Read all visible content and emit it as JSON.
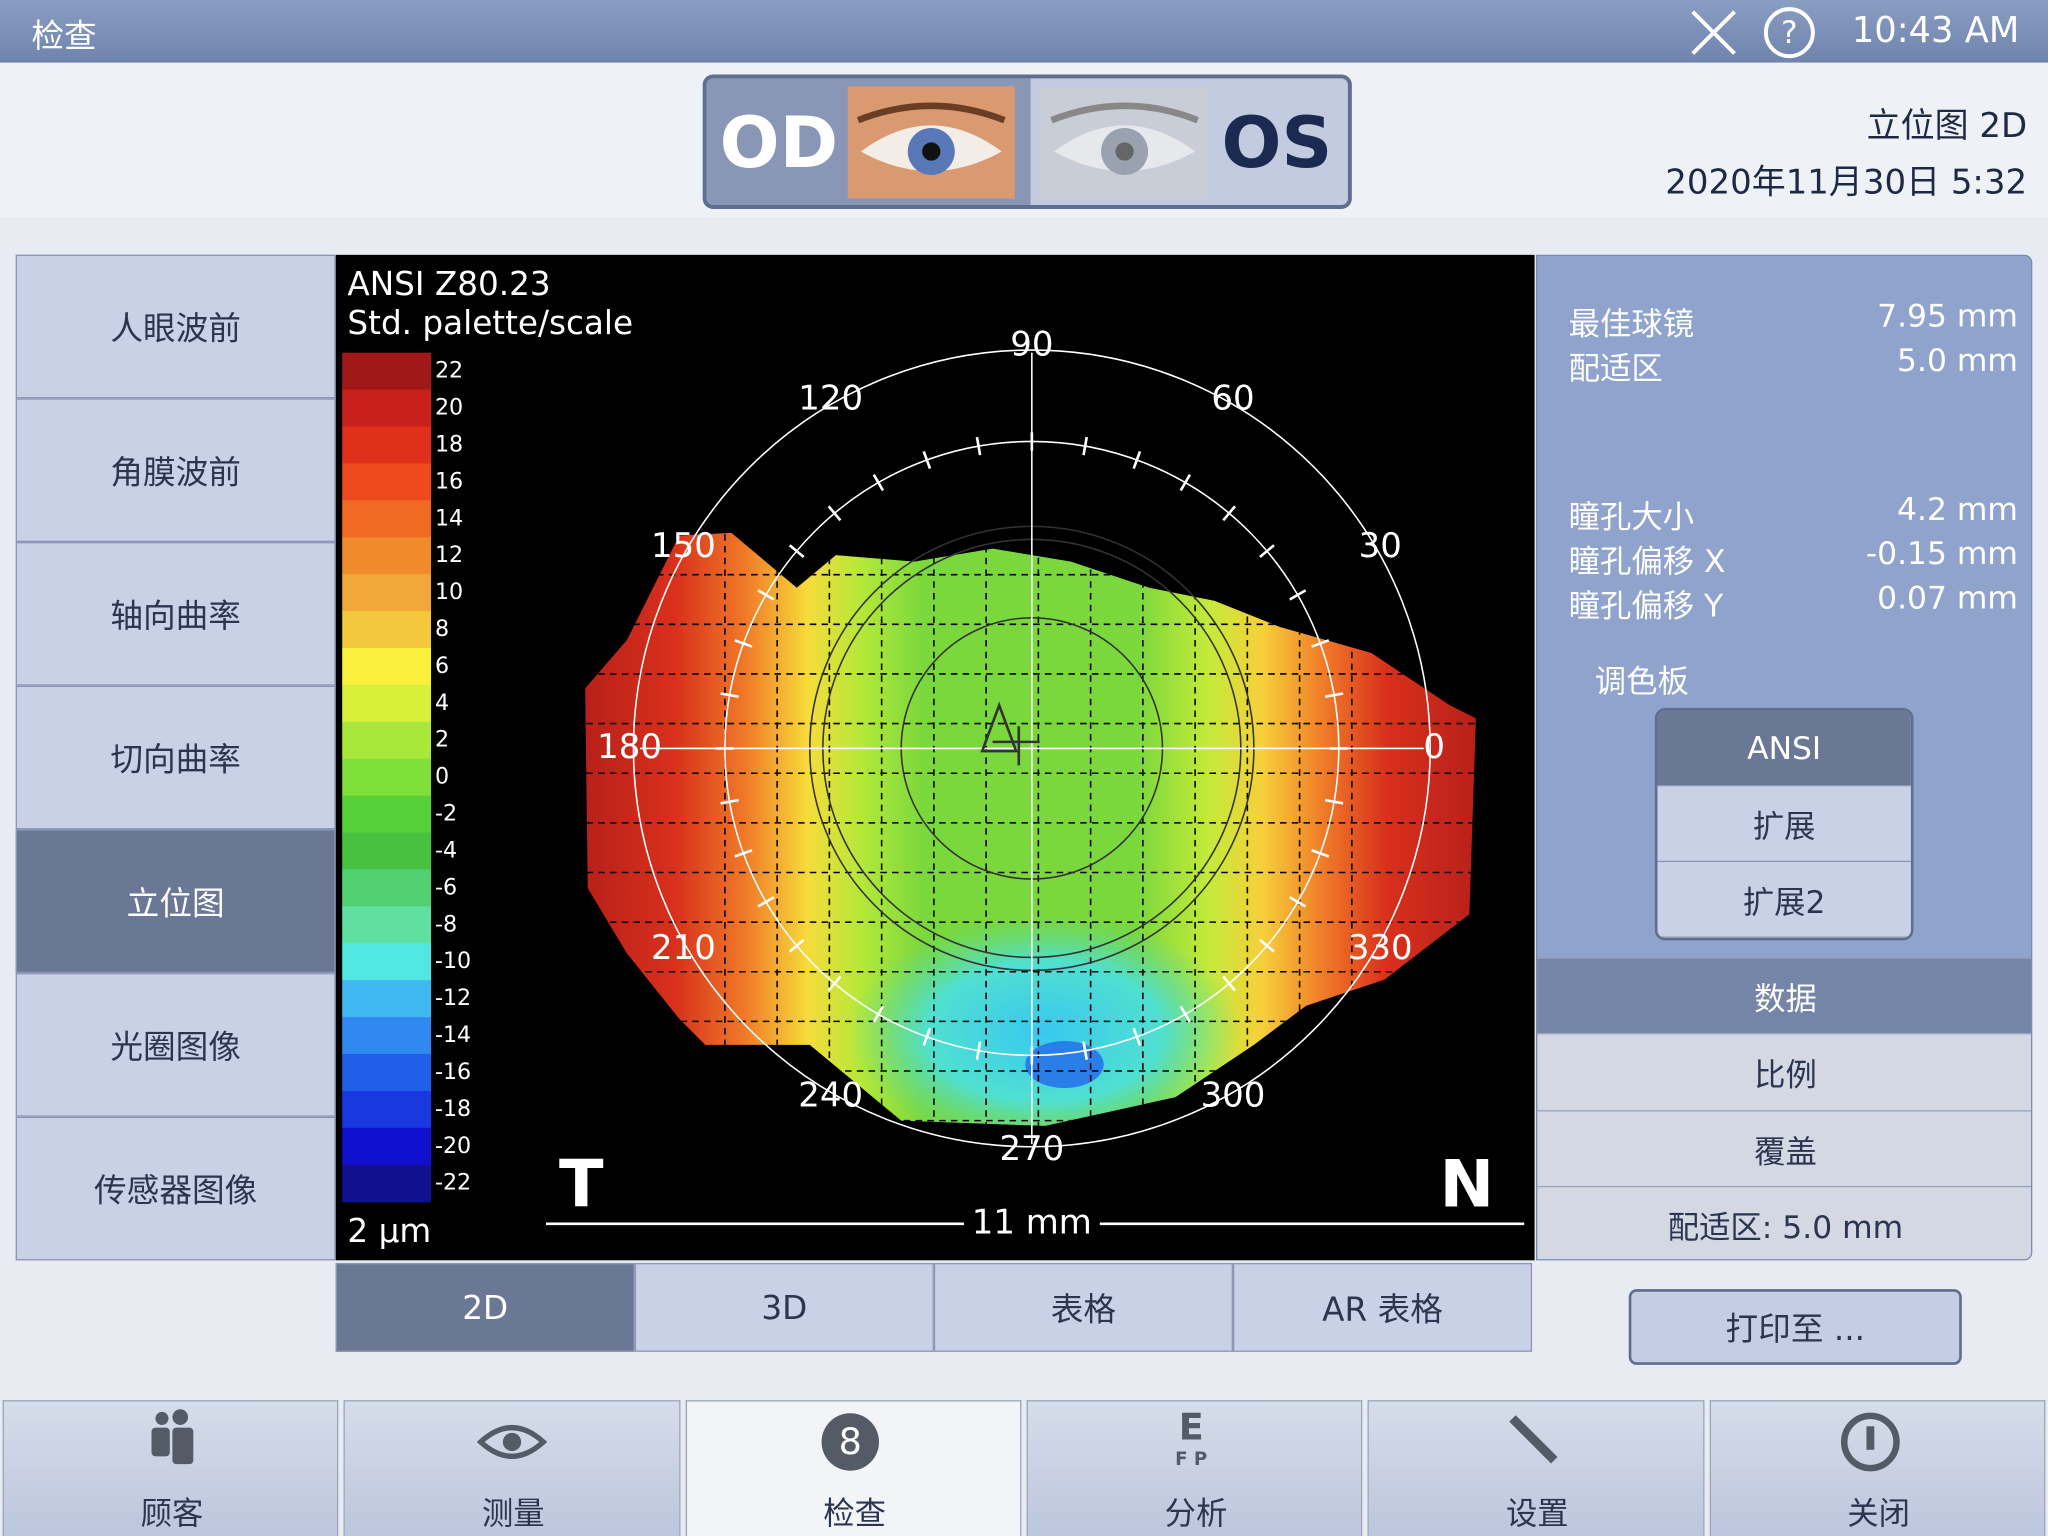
{
  "top_bar": {
    "title": "检查",
    "time": "10:43 AM"
  },
  "eye_selector": {
    "left": "OD",
    "right": "OS"
  },
  "header_info": {
    "view": "立位图 2D",
    "date": "2020年11月30日 5:32"
  },
  "left_menu": {
    "items": [
      "人眼波前",
      "角膜波前",
      "轴向曲率",
      "切向曲率",
      "立位图",
      "光圈图像",
      "传感器图像"
    ],
    "selected": 4
  },
  "map": {
    "title": "ANSI Z80.23",
    "subtitle": "Std. palette/scale",
    "unit": "2 µm",
    "temporal": "T",
    "nasal": "N",
    "scale_bar": "11 mm",
    "scale_labels": [
      22,
      20,
      18,
      16,
      14,
      12,
      10,
      8,
      6,
      4,
      2,
      0,
      -2,
      -4,
      -6,
      -8,
      -10,
      -12,
      -14,
      -16,
      -18,
      -20,
      -22
    ],
    "palette": [
      "#a01818",
      "#c8201a",
      "#e0301c",
      "#ee4a1e",
      "#f06a22",
      "#f08a2a",
      "#f0a838",
      "#f4c83c",
      "#f8f03c",
      "#d8f03a",
      "#a8e83a",
      "#80e03a",
      "#58d038",
      "#48c040",
      "#50d070",
      "#60e0a0",
      "#50e8e0",
      "#40b8f0",
      "#3088f0",
      "#2060e8",
      "#1838e0",
      "#1010d0",
      "#101090"
    ],
    "angles": [
      0,
      30,
      60,
      90,
      120,
      150,
      180,
      210,
      240,
      270,
      300,
      330
    ]
  },
  "view_tabs": {
    "items": [
      "2D",
      "3D",
      "表格",
      "AR 表格"
    ],
    "selected": 0
  },
  "right_panel": {
    "fit": [
      {
        "label": "最佳球镜",
        "value": "7.95 mm"
      },
      {
        "label": "配适区",
        "value": "5.0 mm"
      }
    ],
    "pupil": [
      {
        "label": "瞳孔大小",
        "value": "4.2 mm"
      },
      {
        "label": "瞳孔偏移 X",
        "value": "-0.15 mm"
      },
      {
        "label": "瞳孔偏移 Y",
        "value": "0.07 mm"
      }
    ],
    "palette_label": "调色板",
    "palette_options": [
      "ANSI",
      "扩展",
      "扩展2"
    ],
    "palette_selected": 0,
    "options": [
      "数据",
      "比例",
      "覆盖",
      "配适区: 5.0 mm"
    ],
    "options_selected": 0
  },
  "print_button": "打印至 ...",
  "bottom_nav": {
    "items": [
      "顾客",
      "测量",
      "检查",
      "分析",
      "设置",
      "关闭"
    ],
    "selected": 2
  }
}
